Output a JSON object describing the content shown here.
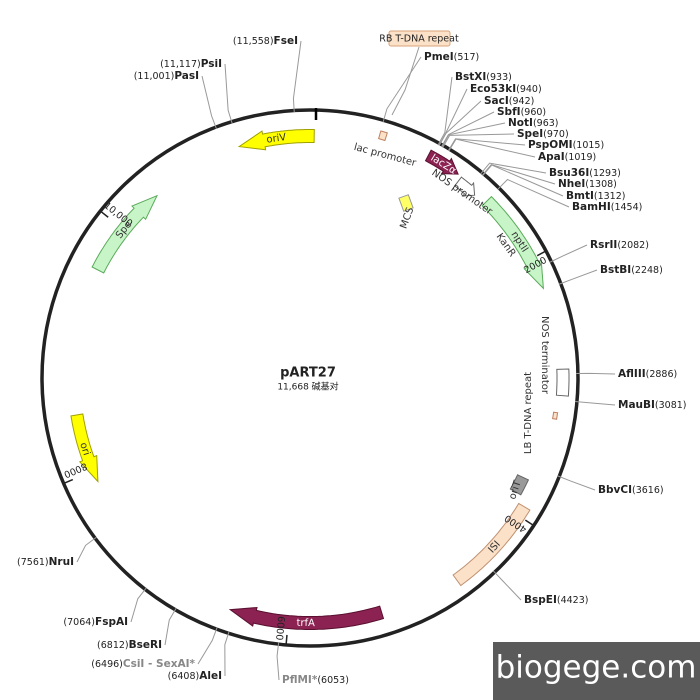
{
  "plasmid": {
    "name": "pART27",
    "length": {
      "value": 11668,
      "label": "11,668 碱基对"
    }
  },
  "ticks": [
    2000,
    4000,
    6000,
    8000,
    {
      "value": 10000,
      "label": "10,000"
    }
  ],
  "sites": [
    {
      "name": "FseI",
      "position": {
        "value": 11558,
        "label": "(11,558)"
      }
    },
    {
      "name": "PsiI",
      "position": {
        "value": 11117,
        "label": "(11,117)"
      }
    },
    {
      "name": "PasI",
      "position": {
        "value": 11001,
        "label": "(11,001)"
      }
    },
    {
      "name": "PmeI",
      "position": {
        "value": 517,
        "label": "(517)"
      }
    },
    {
      "name": "BstXI",
      "position": {
        "value": 933,
        "label": "(933)"
      }
    },
    {
      "name": "Eco53kI",
      "position": {
        "value": 940,
        "label": "(940)"
      }
    },
    {
      "name": "SacI",
      "position": {
        "value": 942,
        "label": "(942)"
      }
    },
    {
      "name": "SbfI",
      "position": {
        "value": 960,
        "label": "(960)"
      }
    },
    {
      "name": "NotI",
      "position": {
        "value": 963,
        "label": "(963)"
      }
    },
    {
      "name": "SpeI",
      "position": {
        "value": 970,
        "label": "(970)"
      }
    },
    {
      "name": "PspOMI",
      "position": {
        "value": 1015,
        "label": "(1015)"
      }
    },
    {
      "name": "ApaI",
      "position": {
        "value": 1019,
        "label": "(1019)"
      }
    },
    {
      "name": "Bsu36I",
      "position": {
        "value": 1293,
        "label": "(1293)"
      }
    },
    {
      "name": "NheI",
      "position": {
        "value": 1308,
        "label": "(1308)"
      }
    },
    {
      "name": "BmtI",
      "position": {
        "value": 1312,
        "label": "(1312)"
      }
    },
    {
      "name": "BamHI",
      "position": {
        "value": 1454,
        "label": "(1454)"
      }
    },
    {
      "name": "RsrII",
      "position": {
        "value": 2082,
        "label": "(2082)"
      }
    },
    {
      "name": "BstBI",
      "position": {
        "value": 2248,
        "label": "(2248)"
      }
    },
    {
      "name": "AflIII",
      "position": {
        "value": 2886,
        "label": "(2886)"
      }
    },
    {
      "name": "MauBI",
      "position": {
        "value": 3081,
        "label": "(3081)"
      }
    },
    {
      "name": "BbvCI",
      "position": {
        "value": 3616,
        "label": "(3616)"
      }
    },
    {
      "name": "BspEI",
      "position": {
        "value": 4423,
        "label": "(4423)"
      }
    },
    {
      "name": "PflMI*",
      "position": {
        "value": 6053,
        "label": "(6053)"
      }
    },
    {
      "name": "AleI",
      "position": {
        "value": 6408,
        "label": "(6408)"
      }
    },
    {
      "name": "CsiI - SexAI*",
      "position": {
        "value": 6496,
        "label": "(6496)"
      }
    },
    {
      "name": "BseRI",
      "position": {
        "value": 6812,
        "label": "(6812)"
      }
    },
    {
      "name": "FspAI",
      "position": {
        "value": 7064,
        "label": "(7064)"
      }
    },
    {
      "name": "NruI",
      "position": {
        "value": 7561,
        "label": "(7561)"
      }
    }
  ],
  "features": [
    "oriV",
    "Spe",
    "ori",
    "trfA",
    "ISI",
    "oriT",
    "lacZα",
    "nptII",
    "KanR",
    "NOS promoter",
    "NOS terminator",
    "LB T-DNA repeat",
    "lac promoter",
    "MCS",
    "RB T-DNA repeat"
  ],
  "watermark": "biogege.com"
}
